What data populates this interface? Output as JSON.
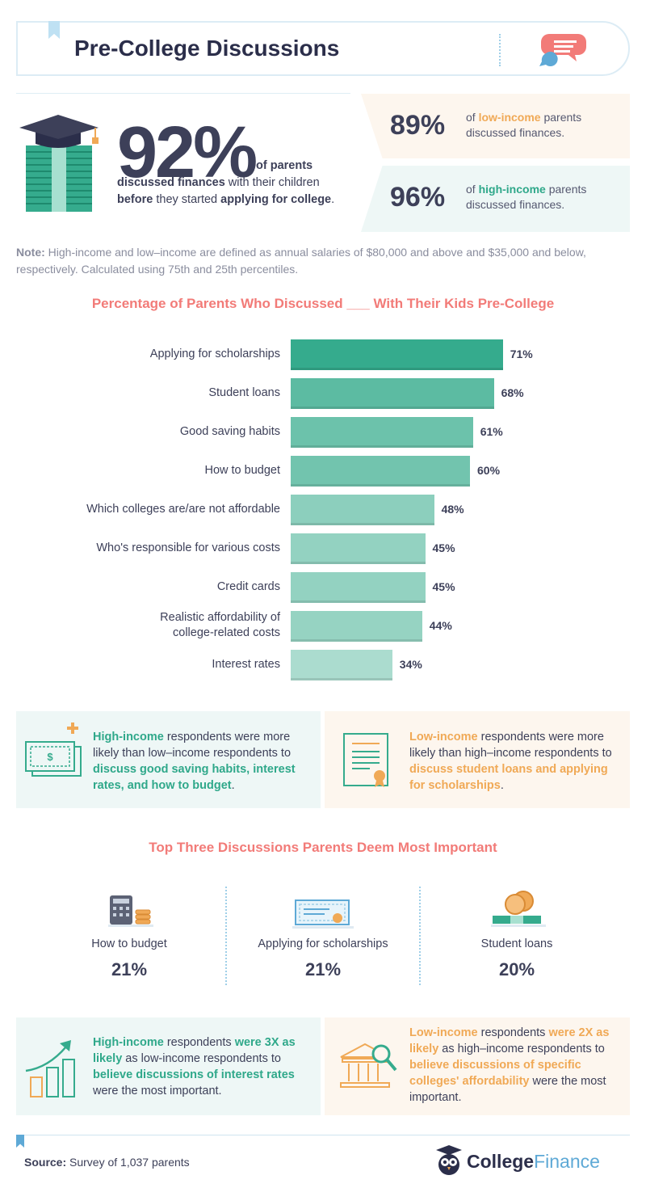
{
  "header": {
    "title": "Pre-College Discussions"
  },
  "hero": {
    "percent": "92%",
    "desc": {
      "t1": "of parents",
      "t2": "discussed finances",
      "t3": " with their children",
      "t4": "before",
      "t5": " they started ",
      "t6": "applying for college",
      "t7": "."
    }
  },
  "stats": {
    "low": {
      "percent": "89%",
      "pre": "of ",
      "group": "low-income",
      "post": " parents",
      "line2": "discussed finances."
    },
    "high": {
      "percent": "96%",
      "pre": "of ",
      "group": "high-income",
      "post": " parents",
      "line2": "discussed finances."
    }
  },
  "note": {
    "label": "Note:",
    "text": " High-income and low–income are defined as annual salaries of $80,000 and above and $35,000 and below, respectively. Calculated using 75th and 25th percentiles."
  },
  "chart_data": {
    "type": "bar",
    "orientation": "horizontal",
    "title": "Percentage of Parents Who Discussed ___ With Their Kids Pre-College",
    "categories": [
      "Applying for scholarships",
      "Student loans",
      "Good saving habits",
      "How to budget",
      "Which colleges are/are not affordable",
      "Who's responsible for various costs",
      "Credit cards",
      "Realistic affordability of college-related costs",
      "Interest rates"
    ],
    "category_lines": [
      [
        "Applying for scholarships"
      ],
      [
        "Student loans"
      ],
      [
        "Good saving habits"
      ],
      [
        "How to budget"
      ],
      [
        "Which colleges are/are not affordable"
      ],
      [
        "Who's responsible for various costs"
      ],
      [
        "Credit cards"
      ],
      [
        "Realistic affordability of",
        "college-related costs"
      ],
      [
        "Interest rates"
      ]
    ],
    "values": [
      71,
      68,
      61,
      60,
      48,
      45,
      45,
      44,
      34
    ],
    "value_labels": [
      "71%",
      "68%",
      "61%",
      "60%",
      "48%",
      "45%",
      "45%",
      "44%",
      "34%"
    ],
    "xlim": [
      0,
      100
    ],
    "bar_colors": [
      "#35ab8d",
      "#5cbba2",
      "#6cc2ab",
      "#72c4ae",
      "#8ccfbd",
      "#93d2c1",
      "#93d2c1",
      "#96d3c2",
      "#abdccf"
    ],
    "grid": false,
    "legend": "none"
  },
  "insights1": {
    "high": {
      "group": "High-income",
      "t1": " respondents were more likely than low–income respondents to ",
      "t2": "discuss good saving habits, interest rates, and how to budget",
      "t3": "."
    },
    "low": {
      "group": "Low-income",
      "t1": " respondents were more likely than high–income respondents to ",
      "t2": "discuss student loans and applying for scholarships",
      "t3": "."
    }
  },
  "top_three": {
    "title": "Top Three Discussions Parents Deem Most Important",
    "items": [
      {
        "label": "How to budget",
        "percent": "21%"
      },
      {
        "label": "Applying for scholarships",
        "percent": "21%"
      },
      {
        "label": "Student loans",
        "percent": "20%"
      }
    ]
  },
  "insights2": {
    "high": {
      "group": "High-income",
      "t1": " respondents ",
      "t2": "were 3X as likely",
      "t3": " as low-income respondents to ",
      "t4": "believe discussions of interest rates",
      "t5": " were the most important."
    },
    "low": {
      "group": "Low-income",
      "t1": " respondents ",
      "t2": "were 2X as likely",
      "t3": " as high–income respondents to ",
      "t4": "believe discussions of specific colleges' affordability",
      "t5": " were the most important."
    }
  },
  "footer": {
    "source_label": "Source:",
    "source_text": " Survey of 1,037 parents",
    "brand_a": "College",
    "brand_b": "Finance"
  },
  "colors": {
    "green": "#2fa88a",
    "orange": "#f0a956",
    "coral": "#f27b78",
    "navy": "#3d4059"
  }
}
